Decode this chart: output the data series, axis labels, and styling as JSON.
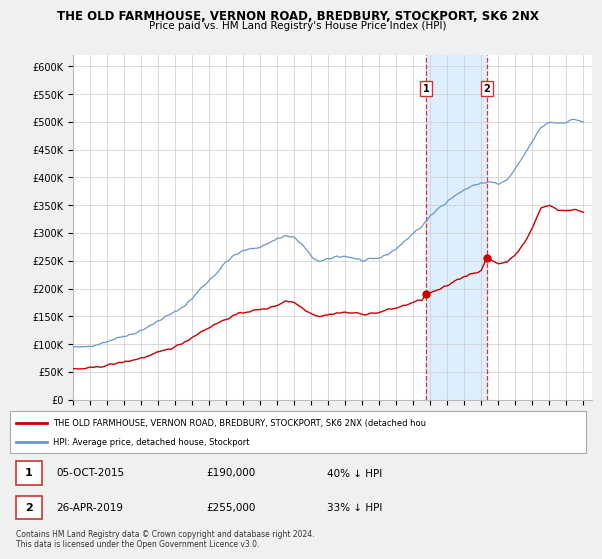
{
  "title": "THE OLD FARMHOUSE, VERNON ROAD, BREDBURY, STOCKPORT, SK6 2NX",
  "subtitle": "Price paid vs. HM Land Registry's House Price Index (HPI)",
  "ylabel_ticks": [
    "£0",
    "£50K",
    "£100K",
    "£150K",
    "£200K",
    "£250K",
    "£300K",
    "£350K",
    "£400K",
    "£450K",
    "£500K",
    "£550K",
    "£600K"
  ],
  "ytick_values": [
    0,
    50000,
    100000,
    150000,
    200000,
    250000,
    300000,
    350000,
    400000,
    450000,
    500000,
    550000,
    600000
  ],
  "ylim": [
    0,
    620000
  ],
  "xlim_start": 1995.0,
  "xlim_end": 2025.5,
  "hpi_color": "#6699cc",
  "price_color": "#cc0000",
  "highlight_color": "#ddeeff",
  "sale1_x": 2015.76,
  "sale1_y": 190000,
  "sale1_label": "1",
  "sale1_date": "05-OCT-2015",
  "sale1_price": "£190,000",
  "sale1_pct": "40% ↓ HPI",
  "sale2_x": 2019.32,
  "sale2_y": 255000,
  "sale2_label": "2",
  "sale2_date": "26-APR-2019",
  "sale2_price": "£255,000",
  "sale2_pct": "33% ↓ HPI",
  "legend_line1": "THE OLD FARMHOUSE, VERNON ROAD, BREDBURY, STOCKPORT, SK6 2NX (detached hou",
  "legend_line2": "HPI: Average price, detached house, Stockport",
  "footnote": "Contains HM Land Registry data © Crown copyright and database right 2024.\nThis data is licensed under the Open Government Licence v3.0.",
  "xtick_years": [
    1995,
    1996,
    1997,
    1998,
    1999,
    2000,
    2001,
    2002,
    2003,
    2004,
    2005,
    2006,
    2007,
    2008,
    2009,
    2010,
    2011,
    2012,
    2013,
    2014,
    2015,
    2016,
    2017,
    2018,
    2019,
    2020,
    2021,
    2022,
    2023,
    2024,
    2025
  ],
  "fig_bg": "#f0f0f0",
  "plot_bg": "#ffffff"
}
